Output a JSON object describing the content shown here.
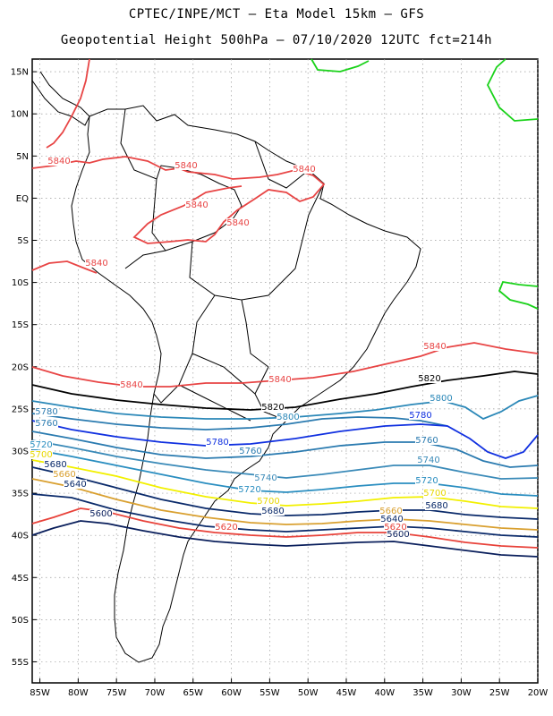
{
  "header": {
    "line1": "CPTEC/INPE/MCT –  Eta Model 15km – GFS",
    "line2": "Geopotential Height 500hPa – 07/10/2020 12UTC fct=214h"
  },
  "axes": {
    "lat_labels": [
      "15N",
      "10N",
      "5N",
      "EQ",
      "5S",
      "10S",
      "15S",
      "20S",
      "25S",
      "30S",
      "35S",
      "40S",
      "45S",
      "50S",
      "55S"
    ],
    "lon_labels": [
      "85W",
      "80W",
      "75W",
      "70W",
      "65W",
      "60W",
      "55W",
      "50W",
      "45W",
      "40W",
      "35W",
      "30W",
      "25W",
      "20W"
    ],
    "lat_range": [
      16.5,
      -57.5
    ],
    "lon_range": [
      -86,
      -20
    ]
  },
  "colors": {
    "c5600": "#0a1f5c",
    "c5640": "#e8423a",
    "c5660": "#d9a030",
    "c5700": "#f2f000",
    "c5680": "#0a2a6a",
    "c5720": "#2a8ec0",
    "c5740": "#3a8ab8",
    "c5760": "#2b7bb0",
    "c5780": "#1030e0",
    "c5800": "#2b88b8",
    "c5820": "#000000",
    "c5840": "#e84545",
    "c5880": "#19d219"
  },
  "contour_labels": [
    {
      "text": "5840",
      "color": "#e84545"
    },
    {
      "text": "5840",
      "color": "#e84545"
    },
    {
      "text": "5840",
      "color": "#e84545"
    },
    {
      "text": "5840",
      "color": "#e84545"
    },
    {
      "text": "5840",
      "color": "#e84545"
    },
    {
      "text": "5840",
      "color": "#e84545"
    },
    {
      "text": "5840",
      "color": "#e84545"
    },
    {
      "text": "5840",
      "color": "#e84545"
    },
    {
      "text": "5840",
      "color": "#e84545"
    },
    {
      "text": "5820",
      "color": "#000000"
    },
    {
      "text": "5820",
      "color": "#000000"
    },
    {
      "text": "5800",
      "color": "#2b88b8"
    },
    {
      "text": "5800",
      "color": "#2b88b8"
    },
    {
      "text": "5780",
      "color": "#1030e0"
    },
    {
      "text": "5780",
      "color": "#1030e0"
    },
    {
      "text": "5780",
      "color": "#2b7bb0"
    },
    {
      "text": "5760",
      "color": "#2b7bb0"
    },
    {
      "text": "5760",
      "color": "#2b7bb0"
    },
    {
      "text": "5760",
      "color": "#2b7bb0"
    },
    {
      "text": "5740",
      "color": "#3a8ab8"
    },
    {
      "text": "5740",
      "color": "#3a8ab8"
    },
    {
      "text": "5720",
      "color": "#2a8ec0"
    },
    {
      "text": "5720",
      "color": "#2a8ec0"
    },
    {
      "text": "5720",
      "color": "#2a8ec0"
    },
    {
      "text": "5700",
      "color": "#e8d800"
    },
    {
      "text": "5700",
      "color": "#e8d800"
    },
    {
      "text": "5700",
      "color": "#e8d800"
    },
    {
      "text": "5680",
      "color": "#0a2a6a"
    },
    {
      "text": "5680",
      "color": "#0a2a6a"
    },
    {
      "text": "5680",
      "color": "#0a2a6a"
    },
    {
      "text": "5660",
      "color": "#d9a030"
    },
    {
      "text": "5660",
      "color": "#d9a030"
    },
    {
      "text": "5640",
      "color": "#0a2a6a"
    },
    {
      "text": "5640",
      "color": "#0a2a6a"
    },
    {
      "text": "5620",
      "color": "#e8423a"
    },
    {
      "text": "5620",
      "color": "#e8423a"
    },
    {
      "text": "5600",
      "color": "#0a1f5c"
    },
    {
      "text": "5600",
      "color": "#0a1f5c"
    }
  ]
}
